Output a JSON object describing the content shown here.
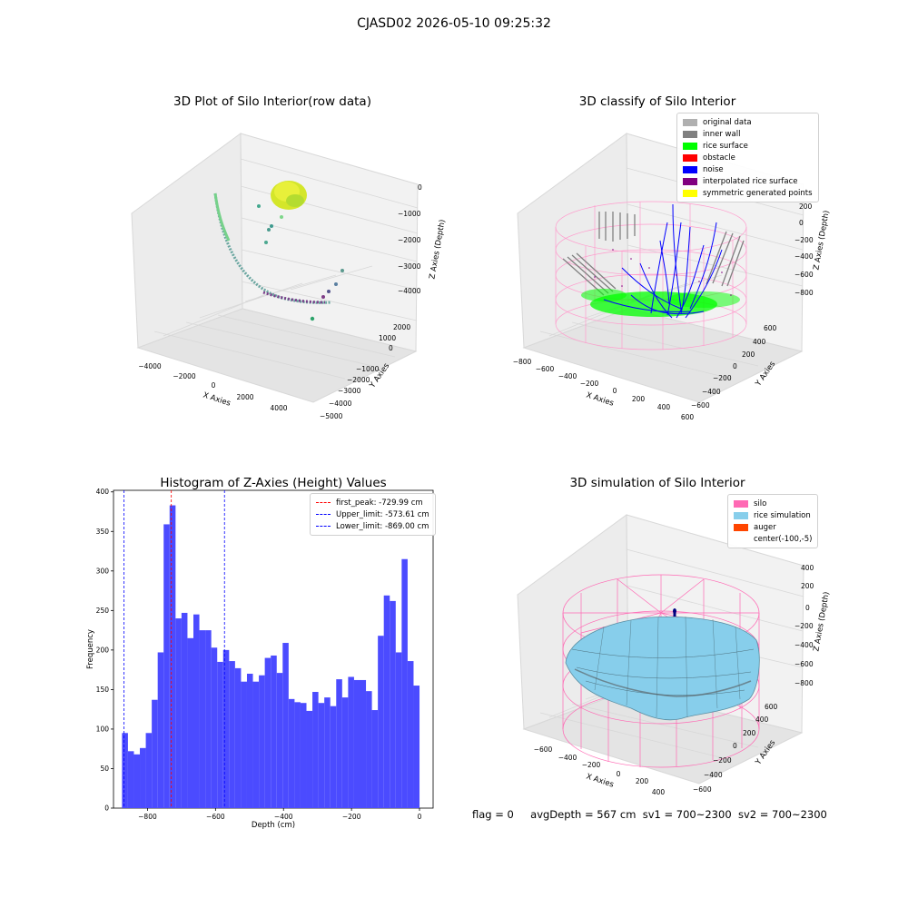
{
  "suptitle": "CJASD02 2026-05-10 09:25:32",
  "status": {
    "flag": "flag = 0",
    "avg_depth": "avgDepth = 567 cm",
    "sv1": "sv1 = 700~2300",
    "sv2": "sv2 = 700~2300"
  },
  "panels": {
    "raw": {
      "title": "3D Plot of Silo Interior(row data)",
      "xlabel": "X Axies",
      "ylabel": "Y Axies",
      "zlabel": "Z Axies (Depth)",
      "xticks": [
        "−4000",
        "−2000",
        "0",
        "2000",
        "4000"
      ],
      "yticks": [
        "2000",
        "1000",
        "0",
        "−1000",
        "−2000",
        "−3000",
        "−4000",
        "−5000"
      ],
      "zticks": [
        "0",
        "−1000",
        "−2000",
        "−3000",
        "−4000"
      ]
    },
    "classify": {
      "title": "3D classify of Silo Interior",
      "xlabel": "X Axies",
      "ylabel": "Y Axies",
      "zlabel": "Z Axies (Depth)",
      "xticks": [
        "−800",
        "−600",
        "−400",
        "−200",
        "0",
        "200",
        "400",
        "600"
      ],
      "yticks": [
        "600",
        "400",
        "200",
        "0",
        "−200",
        "−400",
        "−600"
      ],
      "zticks": [
        "200",
        "0",
        "−200",
        "−400",
        "−600",
        "−800"
      ],
      "legend": [
        {
          "label": "original data",
          "color": "#b0b0b0"
        },
        {
          "label": "inner wall",
          "color": "#808080"
        },
        {
          "label": "rice surface",
          "color": "#00ff00"
        },
        {
          "label": "obstacle",
          "color": "#ff0000"
        },
        {
          "label": "noise",
          "color": "#0000ff"
        },
        {
          "label": "interpolated rice surface",
          "color": "#800080"
        },
        {
          "label": "symmetric generated points",
          "color": "#ffff00"
        }
      ]
    },
    "simulation": {
      "title": "3D simulation of Silo Interior",
      "xlabel": "X Axies",
      "ylabel": "Y Axies",
      "zlabel": "Z Axies (Depth)",
      "xticks": [
        "−600",
        "−400",
        "−200",
        "0",
        "200",
        "400"
      ],
      "yticks": [
        "600",
        "400",
        "200",
        "0",
        "−200",
        "−400",
        "−600"
      ],
      "zticks": [
        "400",
        "200",
        "0",
        "−200",
        "−400",
        "−600",
        "−800"
      ],
      "legend": [
        {
          "label": "silo",
          "color": "#ff69b4"
        },
        {
          "label": "rice simulation",
          "color": "#87ceeb"
        },
        {
          "label": "auger",
          "color": "#ff4500"
        },
        {
          "label": "center(-100,-5)",
          "color": ""
        }
      ]
    }
  },
  "chart_data": {
    "type": "bar",
    "title": "Histogram of Z-Axies (Height) Values",
    "xlabel": "Depth (cm)",
    "ylabel": "Frequency",
    "xlim": [
      -900,
      40
    ],
    "ylim": [
      0,
      402
    ],
    "bin_start": -875,
    "bin_width": 17.5,
    "values": [
      95,
      72,
      68,
      76,
      95,
      137,
      197,
      359,
      383,
      240,
      247,
      215,
      245,
      225,
      225,
      203,
      185,
      200,
      186,
      177,
      160,
      170,
      160,
      168,
      190,
      193,
      171,
      209,
      138,
      134,
      133,
      123,
      147,
      133,
      140,
      129,
      163,
      140,
      166,
      162,
      162,
      148,
      124,
      218,
      269,
      262,
      197,
      315,
      186,
      155
    ],
    "xticks": [
      -800,
      -600,
      -400,
      -200,
      0
    ],
    "yticks": [
      0,
      50,
      100,
      150,
      200,
      250,
      300,
      350,
      400
    ],
    "bar_color": "#4b4bff",
    "grid": false,
    "legend_position": "upper right",
    "vlines": [
      {
        "label": "first_peak: -729.99 cm",
        "x": -729.99,
        "color": "#ff0000"
      },
      {
        "label": "Upper_limit: -573.61 cm",
        "x": -573.61,
        "color": "#0000ff"
      },
      {
        "label": "Lower_limit: -869.00 cm",
        "x": -869.0,
        "color": "#0000ff"
      }
    ]
  }
}
